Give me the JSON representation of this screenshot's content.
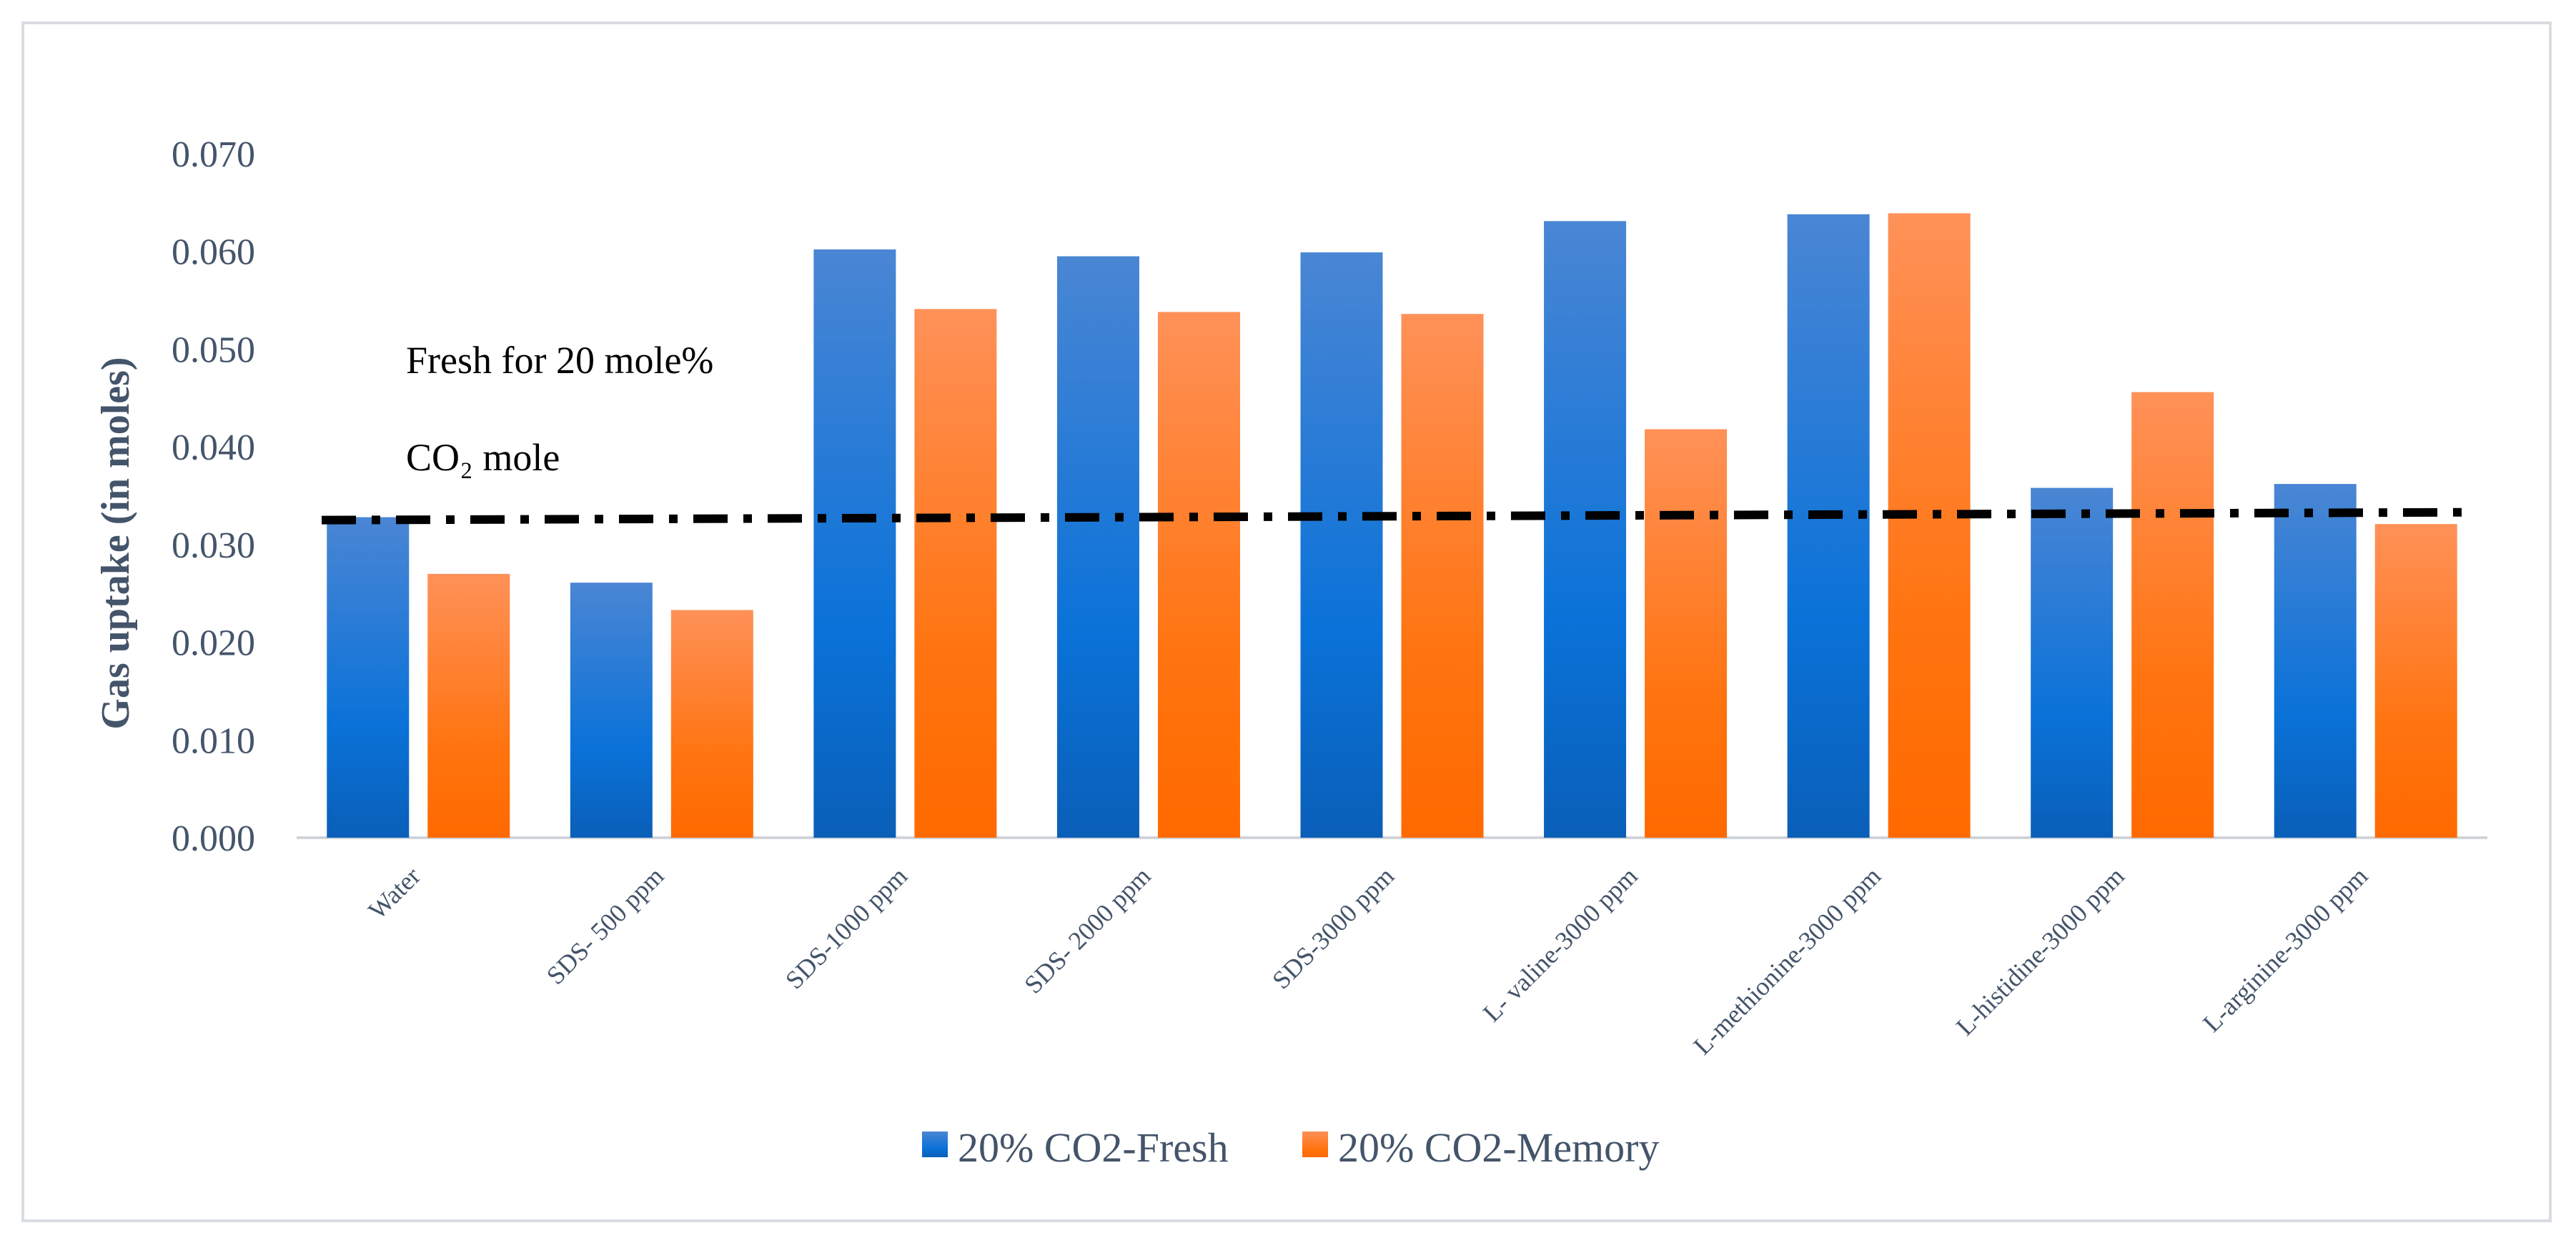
{
  "chart_data": {
    "type": "bar",
    "title": "",
    "xlabel": "",
    "ylabel": "Gas uptake (in moles)",
    "ylim": [
      0,
      0.07
    ],
    "yticks": [
      "0.000",
      "0.010",
      "0.020",
      "0.030",
      "0.040",
      "0.050",
      "0.060",
      "0.070"
    ],
    "grid": false,
    "legend_position": "bottom",
    "categories": [
      "Water",
      "SDS- 500 ppm",
      "SDS-1000 ppm",
      "SDS- 2000 ppm",
      "SDS-3000 ppm",
      "L- valine-3000 ppm",
      "L-methionine-3000 ppm",
      "L-histidine-3000 ppm",
      "L-arginine-3000 ppm"
    ],
    "series": [
      {
        "name": "20% CO2-Fresh",
        "color": "#1f6fcf",
        "values": [
          0.0328,
          0.0261,
          0.0602,
          0.0595,
          0.0599,
          0.0631,
          0.0638,
          0.0358,
          0.0362
        ]
      },
      {
        "name": "20% CO2-Memory",
        "color": "#ff7a1a",
        "values": [
          0.027,
          0.0233,
          0.0541,
          0.0538,
          0.0536,
          0.0418,
          0.0639,
          0.0456,
          0.0321
        ]
      }
    ],
    "reference_line": {
      "label_line1": "Fresh for 20 mole%",
      "label_line2": "CO₂ mole",
      "start_value": 0.0325,
      "end_value": 0.0333,
      "style": "dash-dot",
      "color": "#000000"
    }
  }
}
